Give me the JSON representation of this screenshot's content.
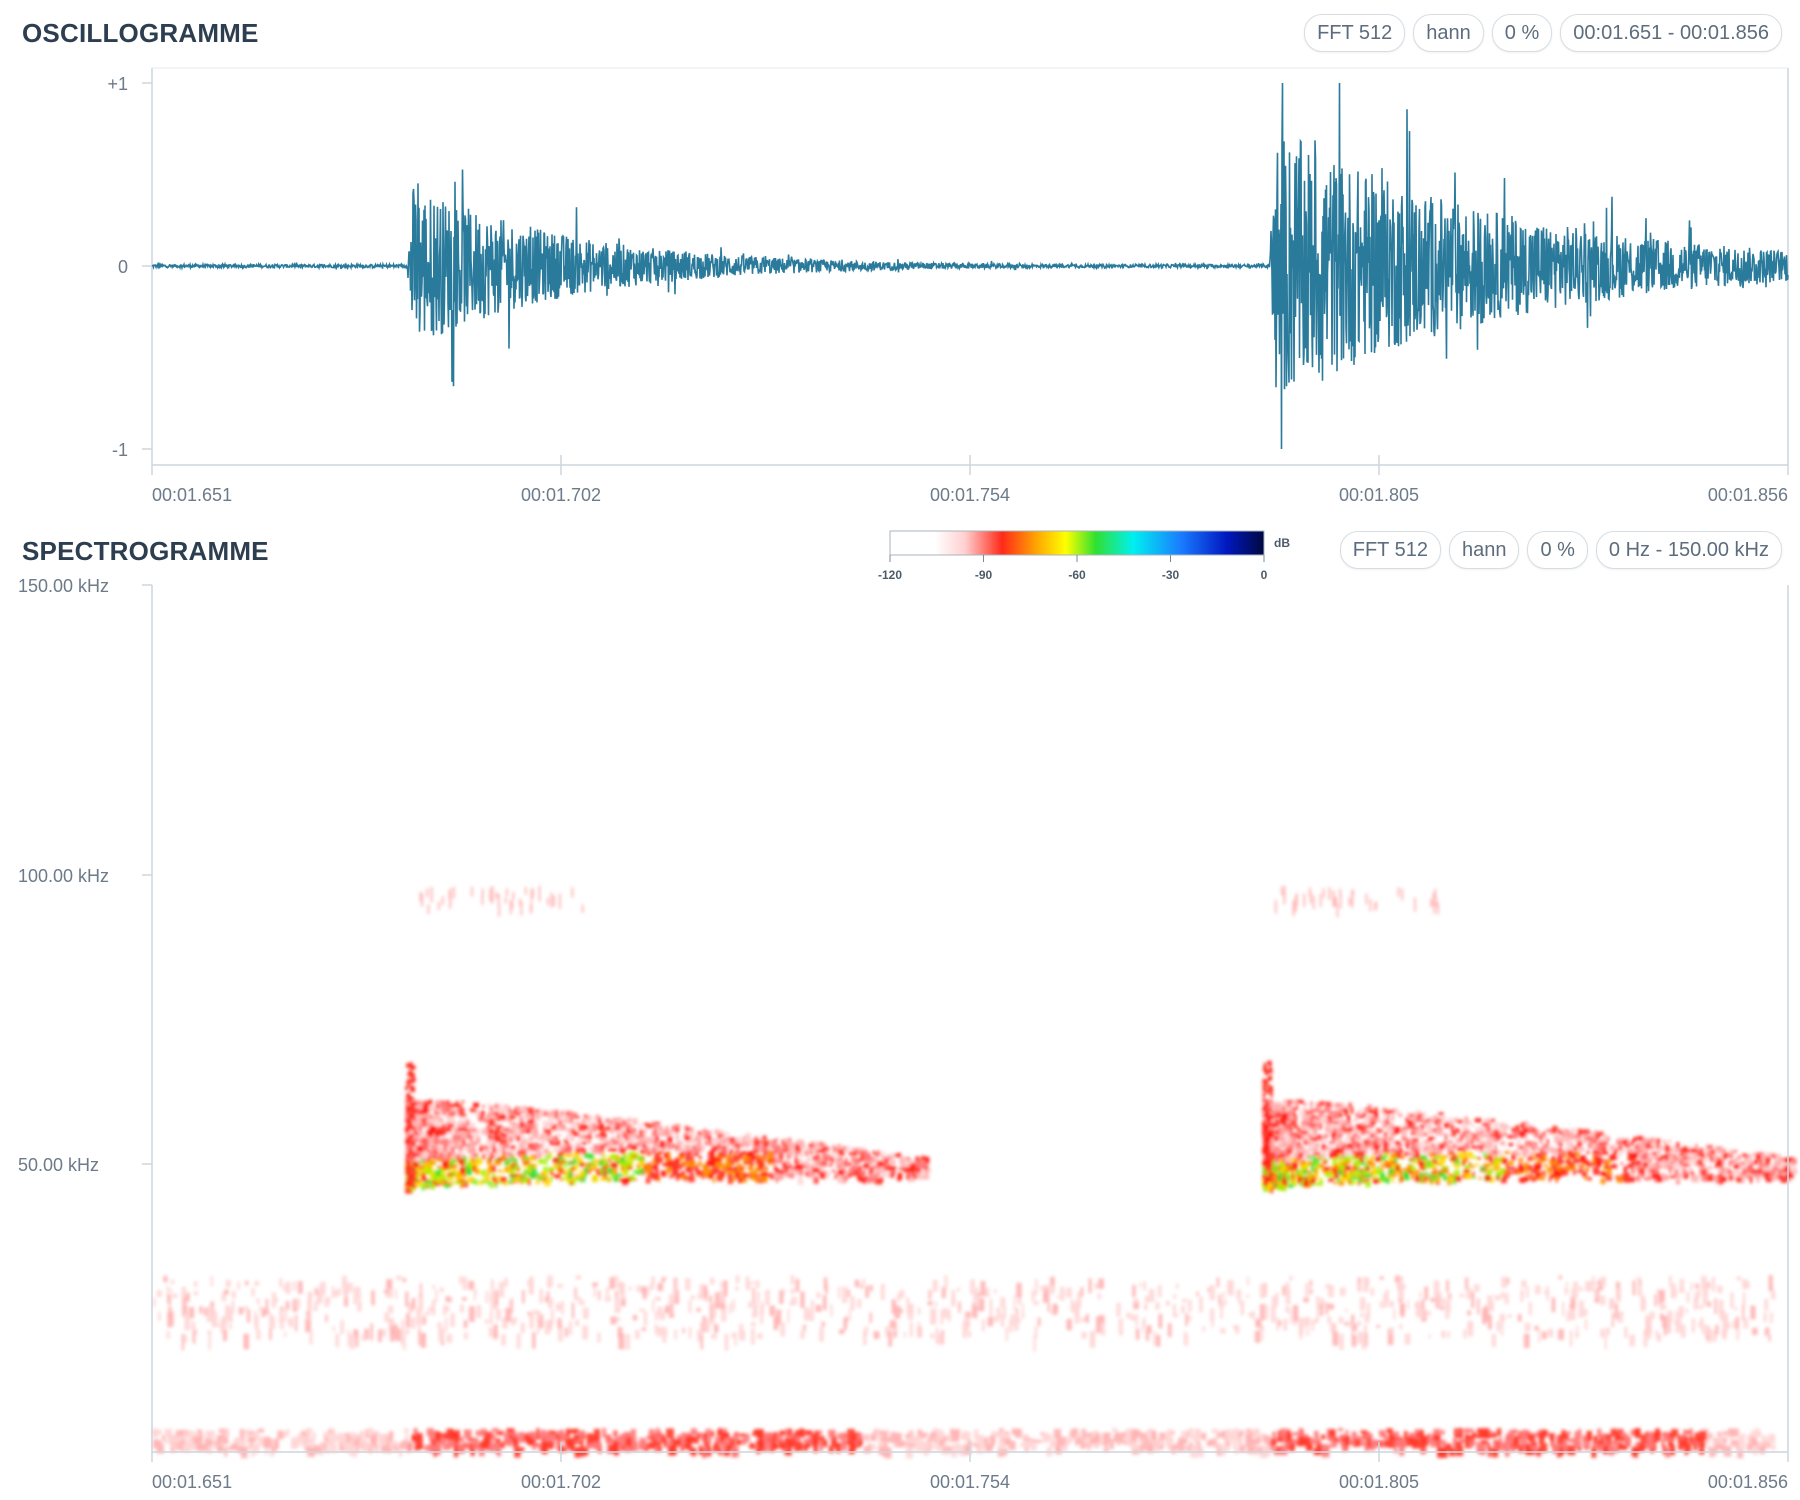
{
  "oscillogram": {
    "title": "OSCILLOGRAMME",
    "pills": [
      "FFT 512",
      "hann",
      "0 %",
      "00:01.651 - 00:01.856"
    ],
    "y_ticks": [
      "+1",
      "0",
      "-1"
    ],
    "x_ticks": [
      "00:01.651",
      "00:01.702",
      "00:01.754",
      "00:01.805",
      "00:01.856"
    ],
    "waveform_color": "#2a7a9c"
  },
  "spectrogram": {
    "title": "SPECTROGRAMME",
    "pills": [
      "FFT 512",
      "hann",
      "0 %",
      "0 Hz - 150.00 kHz"
    ],
    "y_ticks": [
      "150.00 kHz",
      "100.00 kHz",
      "50.00 kHz"
    ],
    "x_ticks": [
      "00:01.651",
      "00:01.702",
      "00:01.754",
      "00:01.805",
      "00:01.856"
    ],
    "colorbar": {
      "unit": "dB",
      "ticks": [
        "-120",
        "-90",
        "-60",
        "-30",
        "0"
      ],
      "colors": [
        "#ffffff",
        "#ffd0d0",
        "#ff2a1a",
        "#ffb000",
        "#ffff00",
        "#30e030",
        "#00f0f0",
        "#1a7aff",
        "#0018c0",
        "#000840"
      ]
    }
  }
}
